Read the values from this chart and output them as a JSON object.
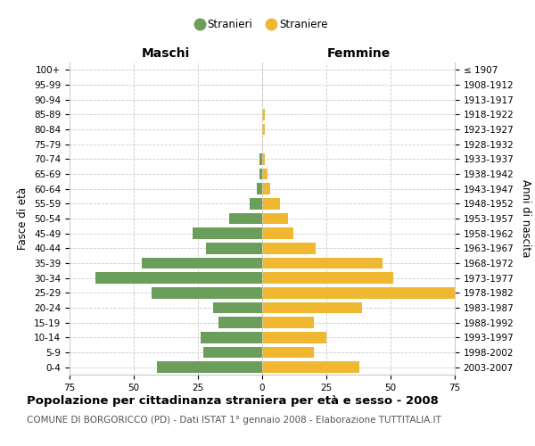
{
  "age_groups": [
    "100+",
    "95-99",
    "90-94",
    "85-89",
    "80-84",
    "75-79",
    "70-74",
    "65-69",
    "60-64",
    "55-59",
    "50-54",
    "45-49",
    "40-44",
    "35-39",
    "30-34",
    "25-29",
    "20-24",
    "15-19",
    "10-14",
    "5-9",
    "0-4"
  ],
  "birth_years": [
    "≤ 1907",
    "1908-1912",
    "1913-1917",
    "1918-1922",
    "1923-1927",
    "1928-1932",
    "1933-1937",
    "1938-1942",
    "1943-1947",
    "1948-1952",
    "1953-1957",
    "1958-1962",
    "1963-1967",
    "1968-1972",
    "1973-1977",
    "1978-1982",
    "1983-1987",
    "1988-1992",
    "1993-1997",
    "1998-2002",
    "2003-2007"
  ],
  "maschi": [
    0,
    0,
    0,
    0,
    0,
    0,
    1,
    1,
    2,
    5,
    13,
    27,
    22,
    47,
    65,
    43,
    19,
    17,
    24,
    23,
    41
  ],
  "femmine": [
    0,
    0,
    0,
    1,
    1,
    0,
    1,
    2,
    3,
    7,
    10,
    12,
    21,
    47,
    51,
    75,
    39,
    20,
    25,
    20,
    38
  ],
  "maschi_color": "#6a9e5a",
  "femmine_color": "#f0b830",
  "bar_height": 0.75,
  "xlim": 75,
  "title_main": "Popolazione per cittadinanza straniera per età e sesso - 2008",
  "title_sub": "COMUNE DI BORGORICCO (PD) - Dati ISTAT 1° gennaio 2008 - Elaborazione TUTTITALIA.IT",
  "header_left": "Maschi",
  "header_right": "Femmine",
  "ylabel_left": "Fasce di età",
  "ylabel_right": "Anni di nascita",
  "legend_maschi": "Stranieri",
  "legend_femmine": "Straniere",
  "bg_color": "#ffffff",
  "grid_color": "#cccccc",
  "tick_fontsize": 7.5,
  "axis_label_fontsize": 8.5,
  "header_fontsize": 10,
  "title_fontsize": 9.5,
  "subtitle_fontsize": 7.5
}
